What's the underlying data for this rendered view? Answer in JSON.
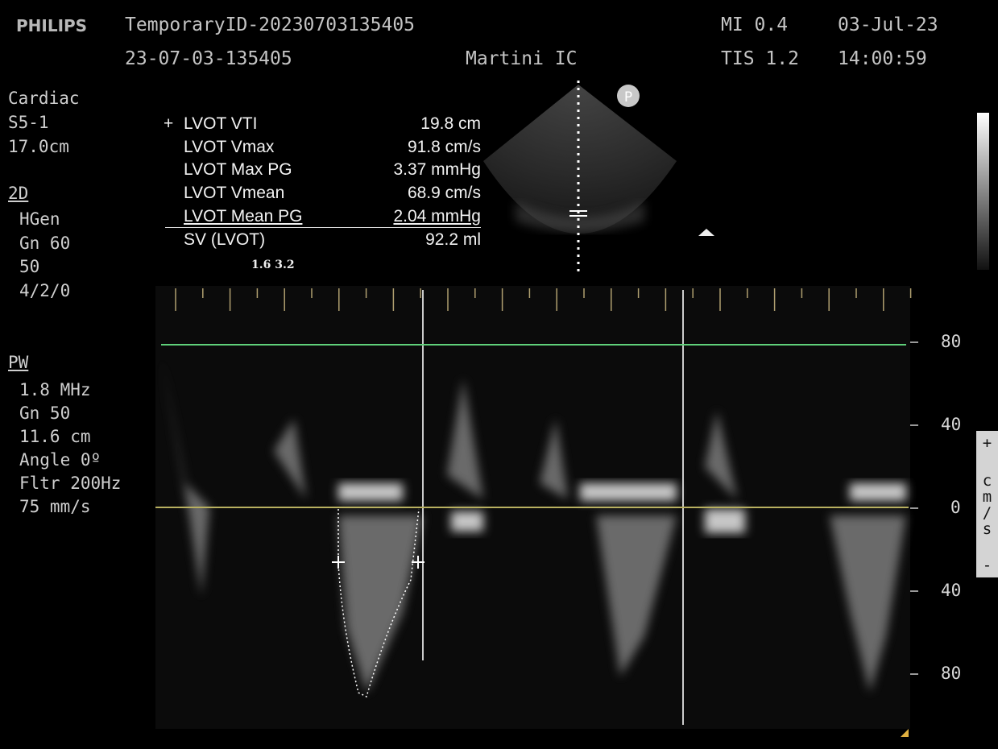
{
  "header": {
    "brand": "PHILIPS",
    "patient_id": "TemporaryID-20230703135405",
    "exam_id": "23-07-03-135405",
    "institution": "Martini IC",
    "mi": "MI 0.4",
    "tis": "TIS 1.2",
    "date": "03-Jul-23",
    "time": "14:00:59"
  },
  "left_panel": {
    "preset": [
      "Cardiac",
      "S5-1",
      "17.0cm"
    ],
    "mode_2d": "2D",
    "settings_2d": [
      "HGen",
      "Gn 60",
      "50",
      "4/2/0"
    ],
    "mode_pw": "PW",
    "settings_pw": [
      "1.8 MHz",
      "Gn 50",
      "11.6 cm",
      "Angle 0º",
      "Fltr 200Hz",
      "75 mm/s"
    ]
  },
  "measurements": {
    "marker": "+",
    "rows": [
      [
        "LVOT VTI",
        "19.8 cm"
      ],
      [
        "LVOT Vmax",
        "91.8 cm/s"
      ],
      [
        "LVOT Max PG",
        "3.37 mmHg"
      ],
      [
        "LVOT Vmean",
        "68.9 cm/s"
      ],
      [
        "LVOT Mean PG",
        "2.04 mmHg"
      ],
      [
        "SV (LVOT)",
        "92.2 ml"
      ]
    ],
    "depth_marks": "1.6 3.2"
  },
  "image_badge": "P",
  "velocity_scale": {
    "labels": [
      "80",
      "40",
      "0",
      "40",
      "80"
    ],
    "plus": "+",
    "unit": "cm/s",
    "minus": "-"
  }
}
